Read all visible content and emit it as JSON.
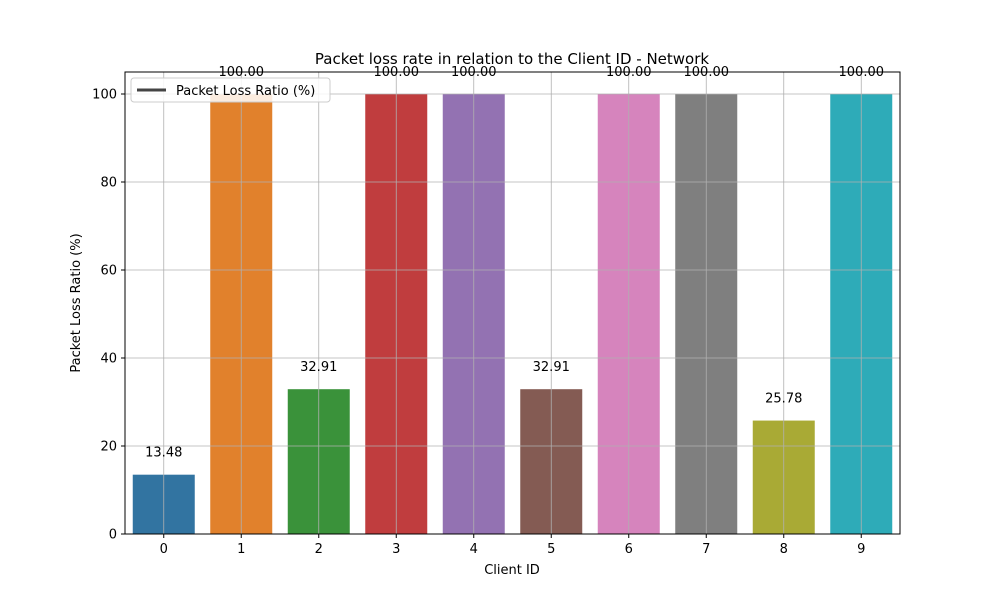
{
  "chart_data": {
    "type": "bar",
    "title": "Packet loss rate in relation to the Client ID - Network",
    "xlabel": "Client ID",
    "ylabel": "Packet Loss Ratio (%)",
    "categories": [
      "0",
      "1",
      "2",
      "3",
      "4",
      "5",
      "6",
      "7",
      "8",
      "9"
    ],
    "values": [
      13.48,
      100.0,
      32.91,
      100.0,
      100.0,
      32.91,
      100.0,
      100.0,
      25.78,
      100.0
    ],
    "value_labels": [
      "13.48",
      "100.00",
      "32.91",
      "100.00",
      "100.00",
      "32.91",
      "100.00",
      "100.00",
      "25.78",
      "100.00"
    ],
    "colors": [
      "#3274a1",
      "#e1812c",
      "#3a923a",
      "#c03d3e",
      "#9372b2",
      "#845b53",
      "#d684bd",
      "#7f7f7f",
      "#a9aa35",
      "#2eabb8"
    ],
    "ylim": [
      0,
      105
    ],
    "yticks": [
      0,
      20,
      40,
      60,
      80,
      100
    ],
    "grid": true,
    "legend": {
      "placement": "top-left",
      "entries": [
        {
          "label": "Packet Loss Ratio (%)",
          "color": "#444444"
        }
      ]
    }
  }
}
